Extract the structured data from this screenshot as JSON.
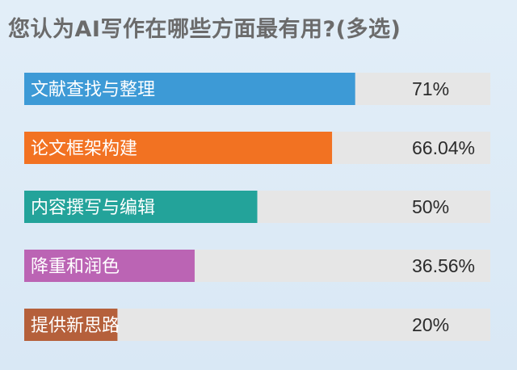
{
  "title": "您认为AI写作在哪些方面最有用?(多选)",
  "chart_data": {
    "type": "bar",
    "orientation": "horizontal",
    "title": "您认为AI写作在哪些方面最有用?(多选)",
    "categories": [
      "文献查找与整理",
      "论文框架构建",
      "内容撰写与编辑",
      "降重和润色",
      "提供新思路"
    ],
    "values": [
      71,
      66.04,
      50,
      36.56,
      20
    ],
    "value_labels": [
      "71%",
      "66.04%",
      "50%",
      "36.56%",
      "20%"
    ],
    "xlim": [
      0,
      100
    ],
    "colors": [
      "#3d9ad6",
      "#f27222",
      "#23a39a",
      "#bb64b4",
      "#b5603b"
    ],
    "track_color": "#e6e6e6",
    "grid": false,
    "legend": "none"
  }
}
